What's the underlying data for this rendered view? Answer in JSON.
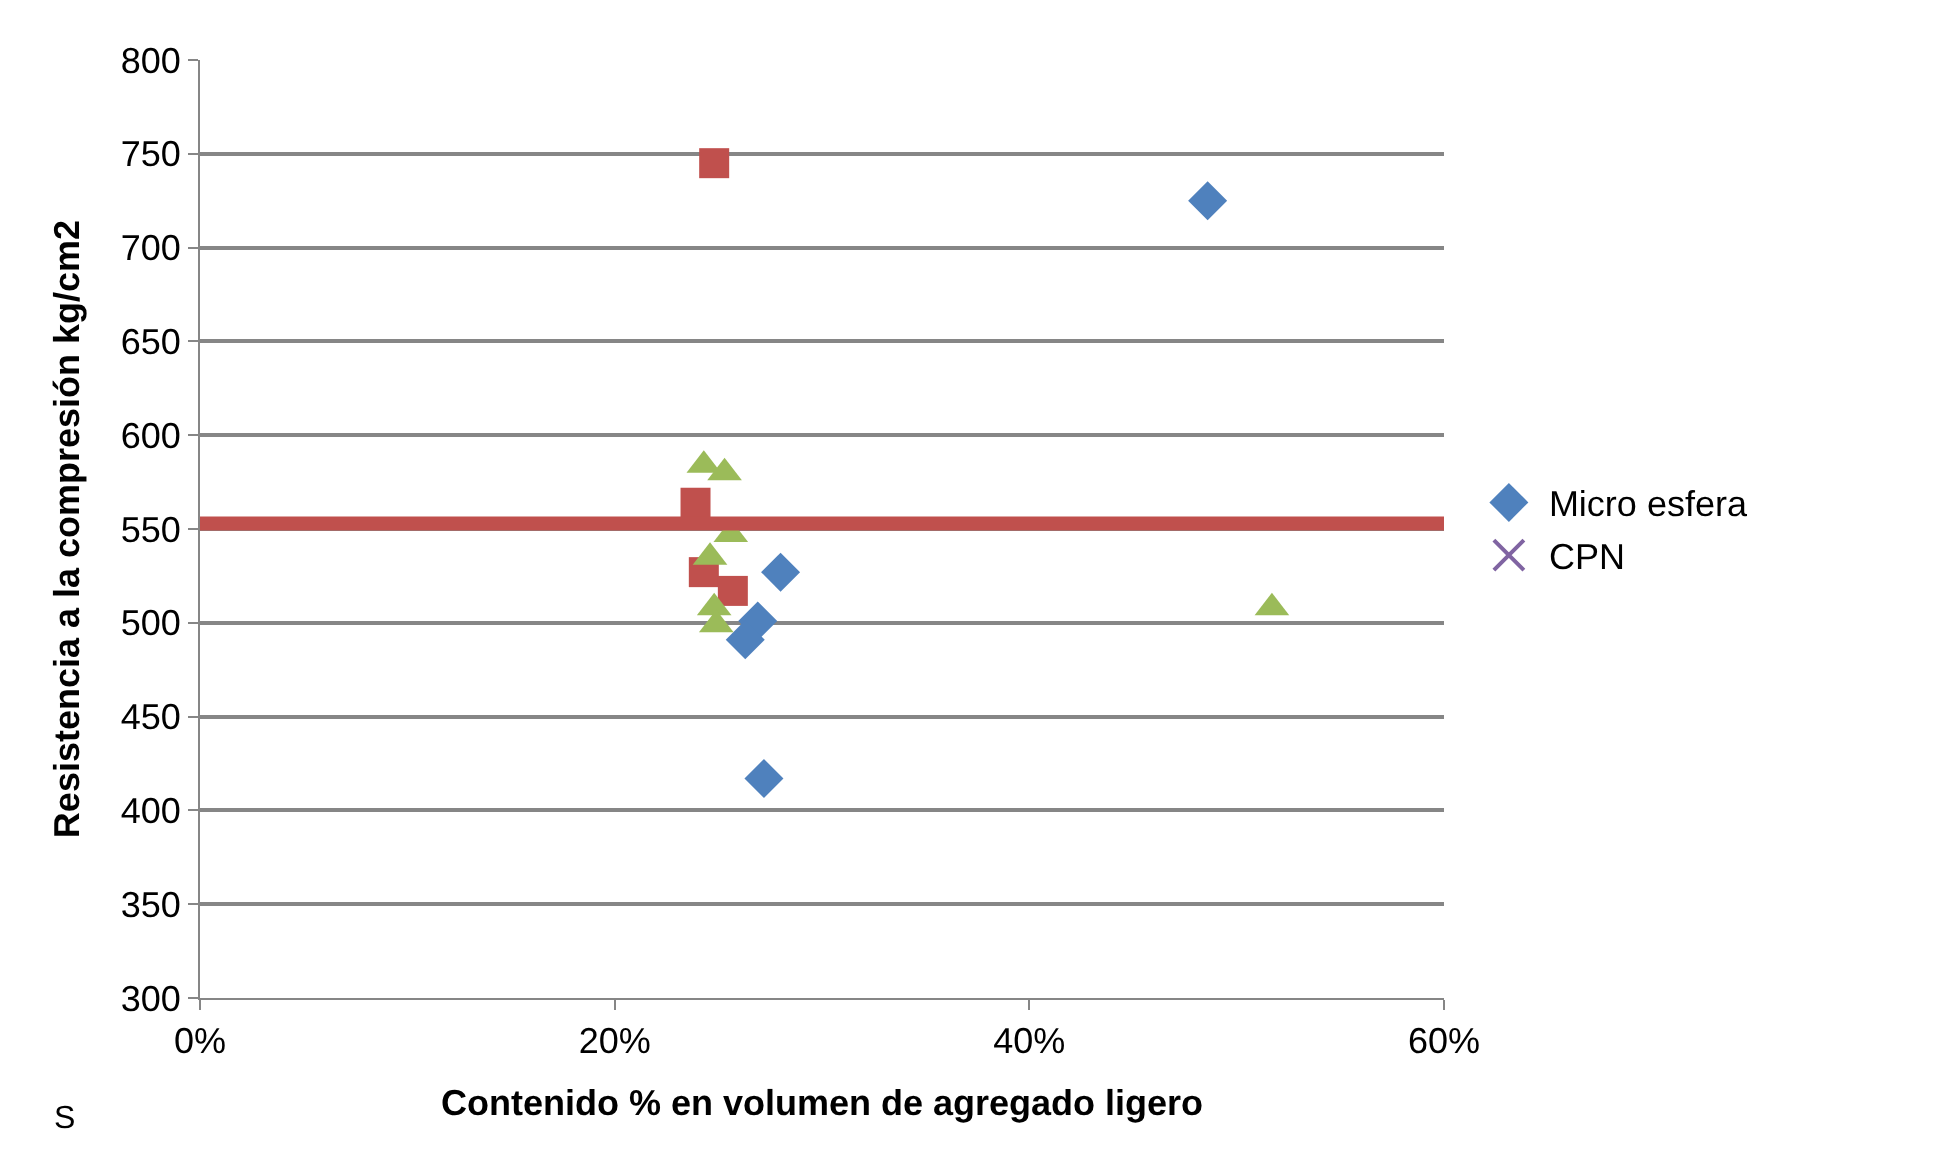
{
  "chart_data": {
    "type": "scatter",
    "xlabel": "Contenido % en volumen de agregado ligero",
    "ylabel": "Resistencia a la compresión kg/cm2",
    "xlim": [
      0,
      60
    ],
    "xticks": [
      {
        "value": 0,
        "label": "0%"
      },
      {
        "value": 20,
        "label": "20%"
      },
      {
        "value": 40,
        "label": "40%"
      },
      {
        "value": 60,
        "label": "60%"
      }
    ],
    "ylim": [
      300,
      800
    ],
    "yticks": [
      300,
      350,
      400,
      450,
      500,
      550,
      600,
      650,
      700,
      750,
      800
    ],
    "grid": "y",
    "legend": "right",
    "series": [
      {
        "name": "Micro esfera",
        "color": "#4f81bd",
        "marker": "diamond",
        "x": [
          48.6,
          28.0,
          26.9,
          26.3,
          27.2
        ],
        "values": [
          725,
          527,
          501,
          491,
          417
        ]
      },
      {
        "color": "#c0504d",
        "marker": "square",
        "x": [
          24.8,
          23.9,
          24.3,
          25.7
        ],
        "values": [
          745,
          564,
          527,
          517
        ]
      },
      {
        "color": "#9bbb59",
        "marker": "triangle",
        "x": [
          24.3,
          25.3,
          25.6,
          24.6,
          24.8,
          24.9,
          51.7
        ],
        "values": [
          584,
          580,
          547,
          535,
          508,
          499,
          508
        ]
      },
      {
        "name": "CPN",
        "color": "#8064a2",
        "marker": "cross"
      }
    ],
    "ref_lines": [
      {
        "axis": "y",
        "value": 553,
        "color": "#c0504d",
        "line_style": "solid"
      }
    ],
    "annotations": [
      "S"
    ]
  }
}
